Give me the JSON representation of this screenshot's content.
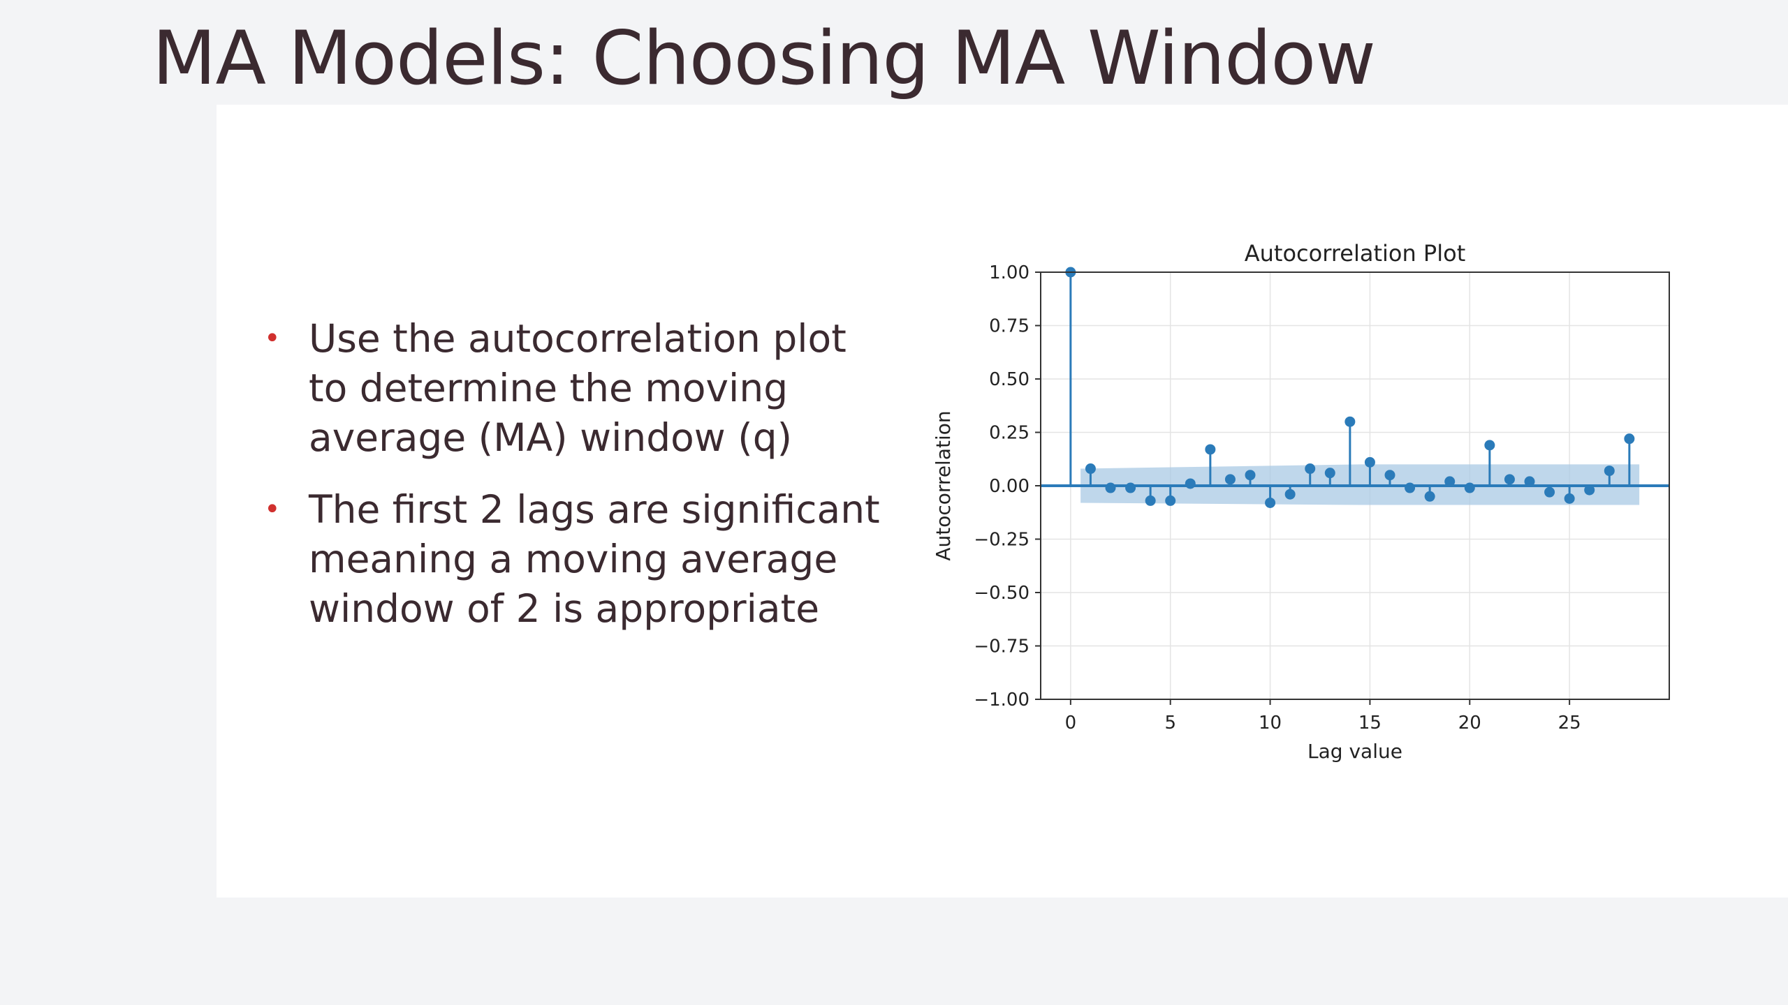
{
  "slide": {
    "title": "MA Models: Choosing MA Window",
    "bullets": [
      "Use the autocorrelation plot to determine the moving average (MA) window (q)",
      "The first 2 lags are significant meaning a moving average window of 2 is appropriate"
    ],
    "bullet_marker": "•"
  },
  "colors": {
    "title_text": "#3b2a30",
    "bullet_marker": "#d0302e",
    "series": "#2b7bb9",
    "confidence_band": "#a9c9e4"
  },
  "chart_data": {
    "type": "scatter",
    "style": "stem",
    "title": "Autocorrelation Plot",
    "xlabel": "Lag value",
    "ylabel": "Autocorrelation",
    "xlim": [
      -1.5,
      30
    ],
    "ylim": [
      -1.0,
      1.0
    ],
    "xticks": [
      0,
      5,
      10,
      15,
      20,
      25
    ],
    "xtick_labels": [
      "0",
      "5",
      "10",
      "15",
      "20",
      "25"
    ],
    "yticks": [
      1.0,
      0.75,
      0.5,
      0.25,
      0.0,
      -0.25,
      -0.5,
      -0.75,
      -1.0
    ],
    "ytick_labels": [
      "1.00",
      "0.75",
      "0.50",
      "0.25",
      "0.00",
      "−0.25",
      "−0.50",
      "−0.75",
      "−1.00"
    ],
    "grid": true,
    "x": [
      0,
      1,
      2,
      3,
      4,
      5,
      6,
      7,
      8,
      9,
      10,
      11,
      12,
      13,
      14,
      15,
      16,
      17,
      18,
      19,
      20,
      21,
      22,
      23,
      24,
      25,
      26,
      27,
      28
    ],
    "values": [
      1.0,
      0.08,
      -0.01,
      -0.01,
      -0.07,
      -0.07,
      0.01,
      0.17,
      0.03,
      0.05,
      -0.08,
      -0.04,
      0.08,
      0.06,
      0.3,
      0.11,
      0.05,
      -0.01,
      -0.05,
      0.02,
      -0.01,
      0.19,
      0.03,
      0.02,
      -0.03,
      -0.06,
      -0.02,
      0.07,
      0.22
    ],
    "confidence_interval": {
      "x": [
        0.5,
        14.5,
        28.5
      ],
      "upper": [
        0.08,
        0.1,
        0.1
      ],
      "lower": [
        -0.08,
        -0.09,
        -0.09
      ]
    }
  }
}
